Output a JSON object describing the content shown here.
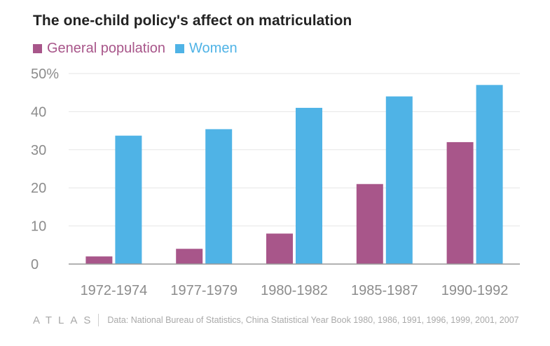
{
  "title": "The one-child policy's affect on matriculation",
  "colors": {
    "general": "#a8568a",
    "women": "#4fb3e6",
    "grid": "#e6e6e6",
    "axis": "#999999",
    "tick": "#8c8c8c"
  },
  "chart_data": {
    "type": "bar",
    "title": "The one-child policy's affect on matriculation",
    "categories": [
      "1972-1974",
      "1977-1979",
      "1980-1982",
      "1985-1987",
      "1990-1992"
    ],
    "series": [
      {
        "name": "General population",
        "values": [
          2,
          4,
          8,
          21,
          32
        ]
      },
      {
        "name": "Women",
        "values": [
          33.7,
          35.4,
          41,
          44,
          47
        ]
      }
    ],
    "ylim": [
      0,
      50
    ],
    "yticks": [
      0,
      10,
      20,
      30,
      40,
      50
    ],
    "ytick_labels": [
      "0",
      "10",
      "20",
      "30",
      "40",
      "50%"
    ],
    "grid": true,
    "legend_position": "top-left"
  },
  "footer": {
    "brand": "ATLAS",
    "source": "Data: National Bureau of Statistics, China Statistical Year Book 1980, 1986, 1991, 1996, 1999, 2001, 2007"
  }
}
